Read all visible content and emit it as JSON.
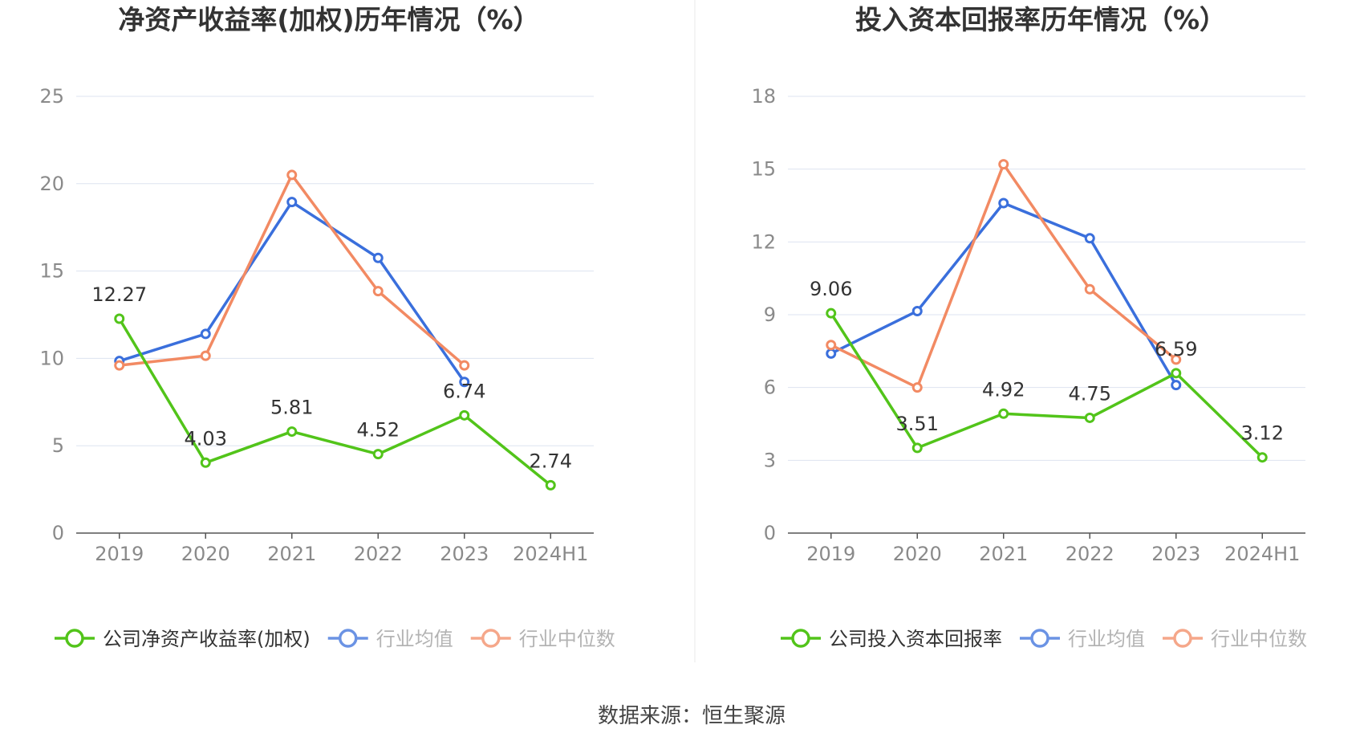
{
  "source": "数据来源：恒生聚源",
  "colors": {
    "company": "#52c41a",
    "average": "#3a6fdc",
    "median": "#f28a63",
    "grid": "#dde3f0",
    "axis": "#555555",
    "divider": "#e8e8e8"
  },
  "chart_data": [
    {
      "type": "line",
      "title": "净资产收益率(加权)历年情况（%）",
      "categories": [
        "2019",
        "2020",
        "2021",
        "2022",
        "2023",
        "2024H1"
      ],
      "yticks": [
        "0",
        "5",
        "10",
        "15",
        "20",
        "25"
      ],
      "ylim": [
        0,
        25
      ],
      "grid": true,
      "legend_position": "bottom",
      "series": [
        {
          "name": "公司净资产收益率(加权)",
          "key": "company",
          "values": [
            12.27,
            4.03,
            5.81,
            4.52,
            6.74,
            2.74
          ],
          "labels": [
            "12.27",
            "4.03",
            "5.81",
            "4.52",
            "6.74",
            "2.74"
          ]
        },
        {
          "name": "行业均值",
          "key": "average",
          "values": [
            9.85,
            11.4,
            18.95,
            15.75,
            8.65,
            null
          ]
        },
        {
          "name": "行业中位数",
          "key": "median",
          "values": [
            9.6,
            10.15,
            20.5,
            13.85,
            9.6,
            null
          ]
        }
      ]
    },
    {
      "type": "line",
      "title": "投入资本回报率历年情况（%）",
      "categories": [
        "2019",
        "2020",
        "2021",
        "2022",
        "2023",
        "2024H1"
      ],
      "yticks": [
        "0",
        "3",
        "6",
        "9",
        "12",
        "15",
        "18"
      ],
      "ylim": [
        0,
        18
      ],
      "grid": true,
      "legend_position": "bottom",
      "series": [
        {
          "name": "公司投入资本回报率",
          "key": "company",
          "values": [
            9.06,
            3.51,
            4.92,
            4.75,
            6.59,
            3.12
          ],
          "labels": [
            "9.06",
            "3.51",
            "4.92",
            "4.75",
            "6.59",
            "3.12"
          ]
        },
        {
          "name": "行业均值",
          "key": "average",
          "values": [
            7.4,
            9.15,
            13.6,
            12.15,
            6.1,
            null
          ]
        },
        {
          "name": "行业中位数",
          "key": "median",
          "values": [
            7.75,
            6.0,
            15.2,
            10.05,
            7.15,
            null
          ]
        }
      ]
    }
  ]
}
